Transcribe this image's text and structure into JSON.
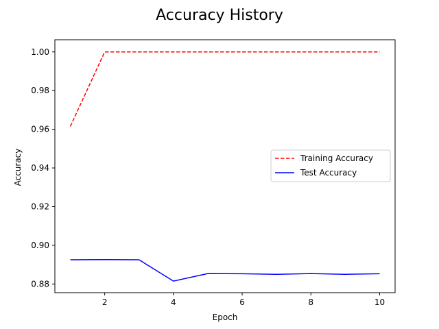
{
  "chart_data": {
    "type": "line",
    "title": "Accuracy History",
    "xlabel": "Epoch",
    "ylabel": "Accuracy",
    "x": [
      1,
      2,
      3,
      4,
      5,
      6,
      7,
      8,
      9,
      10
    ],
    "xlim": [
      0.55,
      10.45
    ],
    "ylim": [
      0.8755,
      1.0063
    ],
    "xticks": [
      2,
      4,
      6,
      8,
      10
    ],
    "yticks": [
      0.88,
      0.9,
      0.92,
      0.94,
      0.96,
      0.98,
      1.0
    ],
    "ytick_labels": [
      "0.88",
      "0.90",
      "0.92",
      "0.94",
      "0.96",
      "0.98",
      "1.00"
    ],
    "grid": false,
    "legend": "center-right",
    "series": [
      {
        "name": "Training Accuracy",
        "color": "#ff0000",
        "style": "dashed",
        "values": [
          0.9615,
          1.0,
          1.0,
          1.0,
          1.0,
          1.0,
          1.0,
          1.0,
          1.0,
          1.0
        ]
      },
      {
        "name": "Test Accuracy",
        "color": "#0000ff",
        "style": "solid",
        "values": [
          0.8925,
          0.8926,
          0.8925,
          0.8815,
          0.8854,
          0.8853,
          0.885,
          0.8854,
          0.885,
          0.8853
        ]
      }
    ]
  }
}
